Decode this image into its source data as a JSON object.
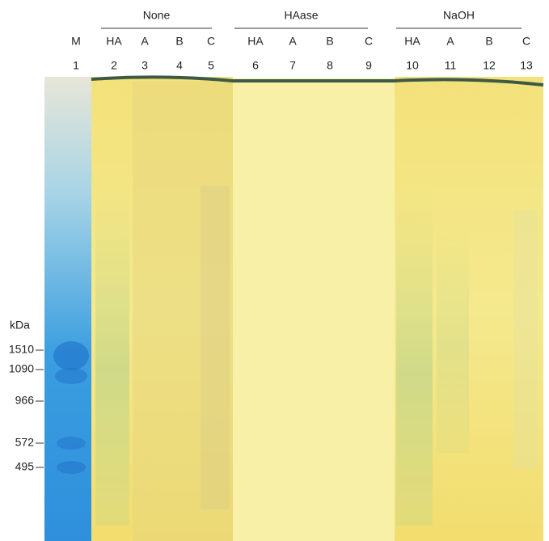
{
  "groups": [
    {
      "label": "None"
    },
    {
      "label": "HAase"
    },
    {
      "label": "NaOH"
    }
  ],
  "lanes": [
    {
      "sample": "M",
      "number": 1
    },
    {
      "sample": "HA",
      "number": 2
    },
    {
      "sample": "A",
      "number": 3
    },
    {
      "sample": "B",
      "number": 4
    },
    {
      "sample": "C",
      "number": 5
    },
    {
      "sample": "HA",
      "number": 6
    },
    {
      "sample": "A",
      "number": 7
    },
    {
      "sample": "B",
      "number": 8
    },
    {
      "sample": "C",
      "number": 9
    },
    {
      "sample": "HA",
      "number": 10
    },
    {
      "sample": "A",
      "number": 11
    },
    {
      "sample": "B",
      "number": 12
    },
    {
      "sample": "C",
      "number": 13
    }
  ],
  "marker": {
    "unit": "kDa",
    "sizes": [
      1510,
      1090,
      966,
      572,
      495
    ]
  }
}
